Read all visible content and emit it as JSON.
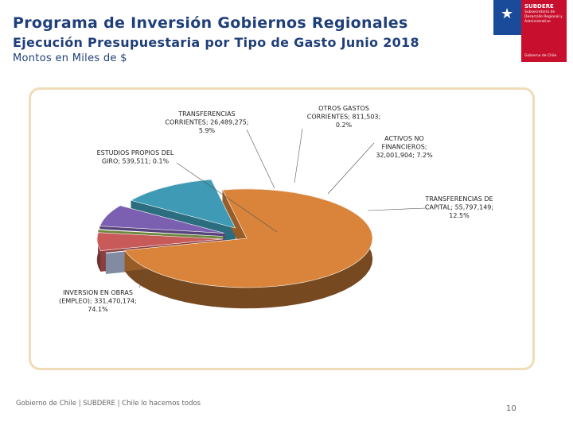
{
  "header": {
    "title": "Programa de Inversión Gobiernos Regionales",
    "subtitle": "Ejecución Presupuestaria por Tipo de Gasto Junio 2018",
    "units": "Montos en Miles de $"
  },
  "logo": {
    "name": "SUBDERE",
    "subtitle": "Subsecretaría de Desarrollo Regional y Administrativo",
    "gov": "Gobierno de Chile"
  },
  "chart_data": {
    "type": "pie",
    "title": "Ejecución Presupuestaria por Tipo de Gasto Junio 2018",
    "units": "Miles de $",
    "slices": [
      {
        "name": "INVERSION EN OBRAS (EMPLEO)",
        "value": 331470174,
        "percent": 74.1,
        "color": "#d9843a",
        "label_lines": [
          "INVERSION EN OBRAS",
          "(EMPLEO); 331,470,174;",
          "74.1%"
        ]
      },
      {
        "name": "ESTUDIOS PROPIOS DEL GIRO",
        "value": 539511,
        "percent": 0.1,
        "color": "#b8c8e8",
        "label_lines": [
          "ESTUDIOS PROPIOS DEL",
          "GIRO; 539,511; 0.1%"
        ]
      },
      {
        "name": "TRANSFERENCIAS CORRIENTES",
        "value": 26489275,
        "percent": 5.9,
        "color": "#c85a5a",
        "label_lines": [
          "TRANSFERENCIAS",
          "CORRIENTES; 26,489,275;",
          "5.9%"
        ]
      },
      {
        "name": "OTROS GASTOS CORRIENTES",
        "value": 811503,
        "percent": 0.2,
        "color": "#9fc05a",
        "label_lines": [
          "OTROS GASTOS",
          "CORRIENTES; 811,503;",
          "0.2%"
        ]
      },
      {
        "name": "ACTIVOS NO FINANCIEROS",
        "value": 32001904,
        "percent": 7.2,
        "color": "#7b5fb0",
        "label_lines": [
          "ACTIVOS NO",
          "FINANCIEROS;",
          "32,001,904; 7.2%"
        ]
      },
      {
        "name": "TRANSFERENCIAS DE CAPITAL",
        "value": 55797149,
        "percent": 12.5,
        "color": "#3f9bb5",
        "label_lines": [
          "TRANSFERENCIAS DE",
          "CAPITAL; 55,797,149;",
          "12.5%"
        ]
      }
    ]
  },
  "footer": {
    "text": "Gobierno de Chile | SUBDERE | Chile lo hacemos todos",
    "page": "10"
  }
}
